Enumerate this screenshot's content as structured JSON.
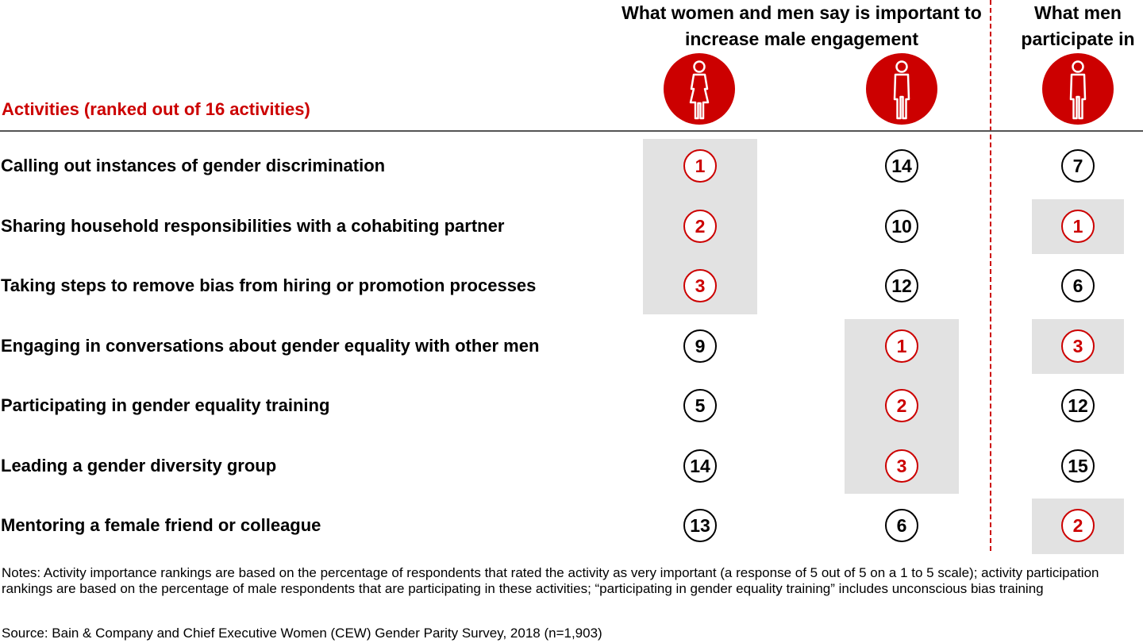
{
  "header": {
    "group_left": "What women and men say is important to increase male engagement",
    "group_right": "What men participate in",
    "activities_title": "Activities (ranked out of 16 activities)",
    "columns": [
      {
        "icon": "woman-icon"
      },
      {
        "icon": "man-icon"
      },
      {
        "icon": "man-icon"
      }
    ]
  },
  "chart_data": {
    "type": "table",
    "rows": [
      {
        "activity": "Calling out instances of gender discrimination",
        "ranks": [
          1,
          14,
          7
        ]
      },
      {
        "activity": "Sharing household responsibilities with a cohabiting partner",
        "ranks": [
          2,
          10,
          1
        ]
      },
      {
        "activity": "Taking steps to remove bias from hiring or promotion processes",
        "ranks": [
          3,
          12,
          6
        ]
      },
      {
        "activity": "Engaging in conversations about gender equality with other men",
        "ranks": [
          9,
          1,
          3
        ]
      },
      {
        "activity": "Participating in gender equality training",
        "ranks": [
          5,
          2,
          12
        ]
      },
      {
        "activity": "Leading a gender diversity group",
        "ranks": [
          14,
          3,
          15
        ]
      },
      {
        "activity": "Mentoring a female friend or colleague",
        "ranks": [
          13,
          6,
          2
        ]
      }
    ],
    "highlight": "top 3 ranks per column shaded grey with red circle"
  },
  "colors": {
    "accent": "#cc0000",
    "highlight": "#e2e2e2",
    "rule": "#555555"
  },
  "footer": {
    "notes": "Notes: Activity importance rankings are based on the percentage of respondents that rated the activity as very important (a response of 5 out of 5 on a 1 to 5 scale); activity participation rankings are based on the percentage of male respondents that are participating in these activities; “participating in gender equality training” includes unconscious bias training",
    "source": "Source: Bain & Company and Chief Executive Women (CEW) Gender Parity Survey, 2018 (n=1,903)"
  }
}
